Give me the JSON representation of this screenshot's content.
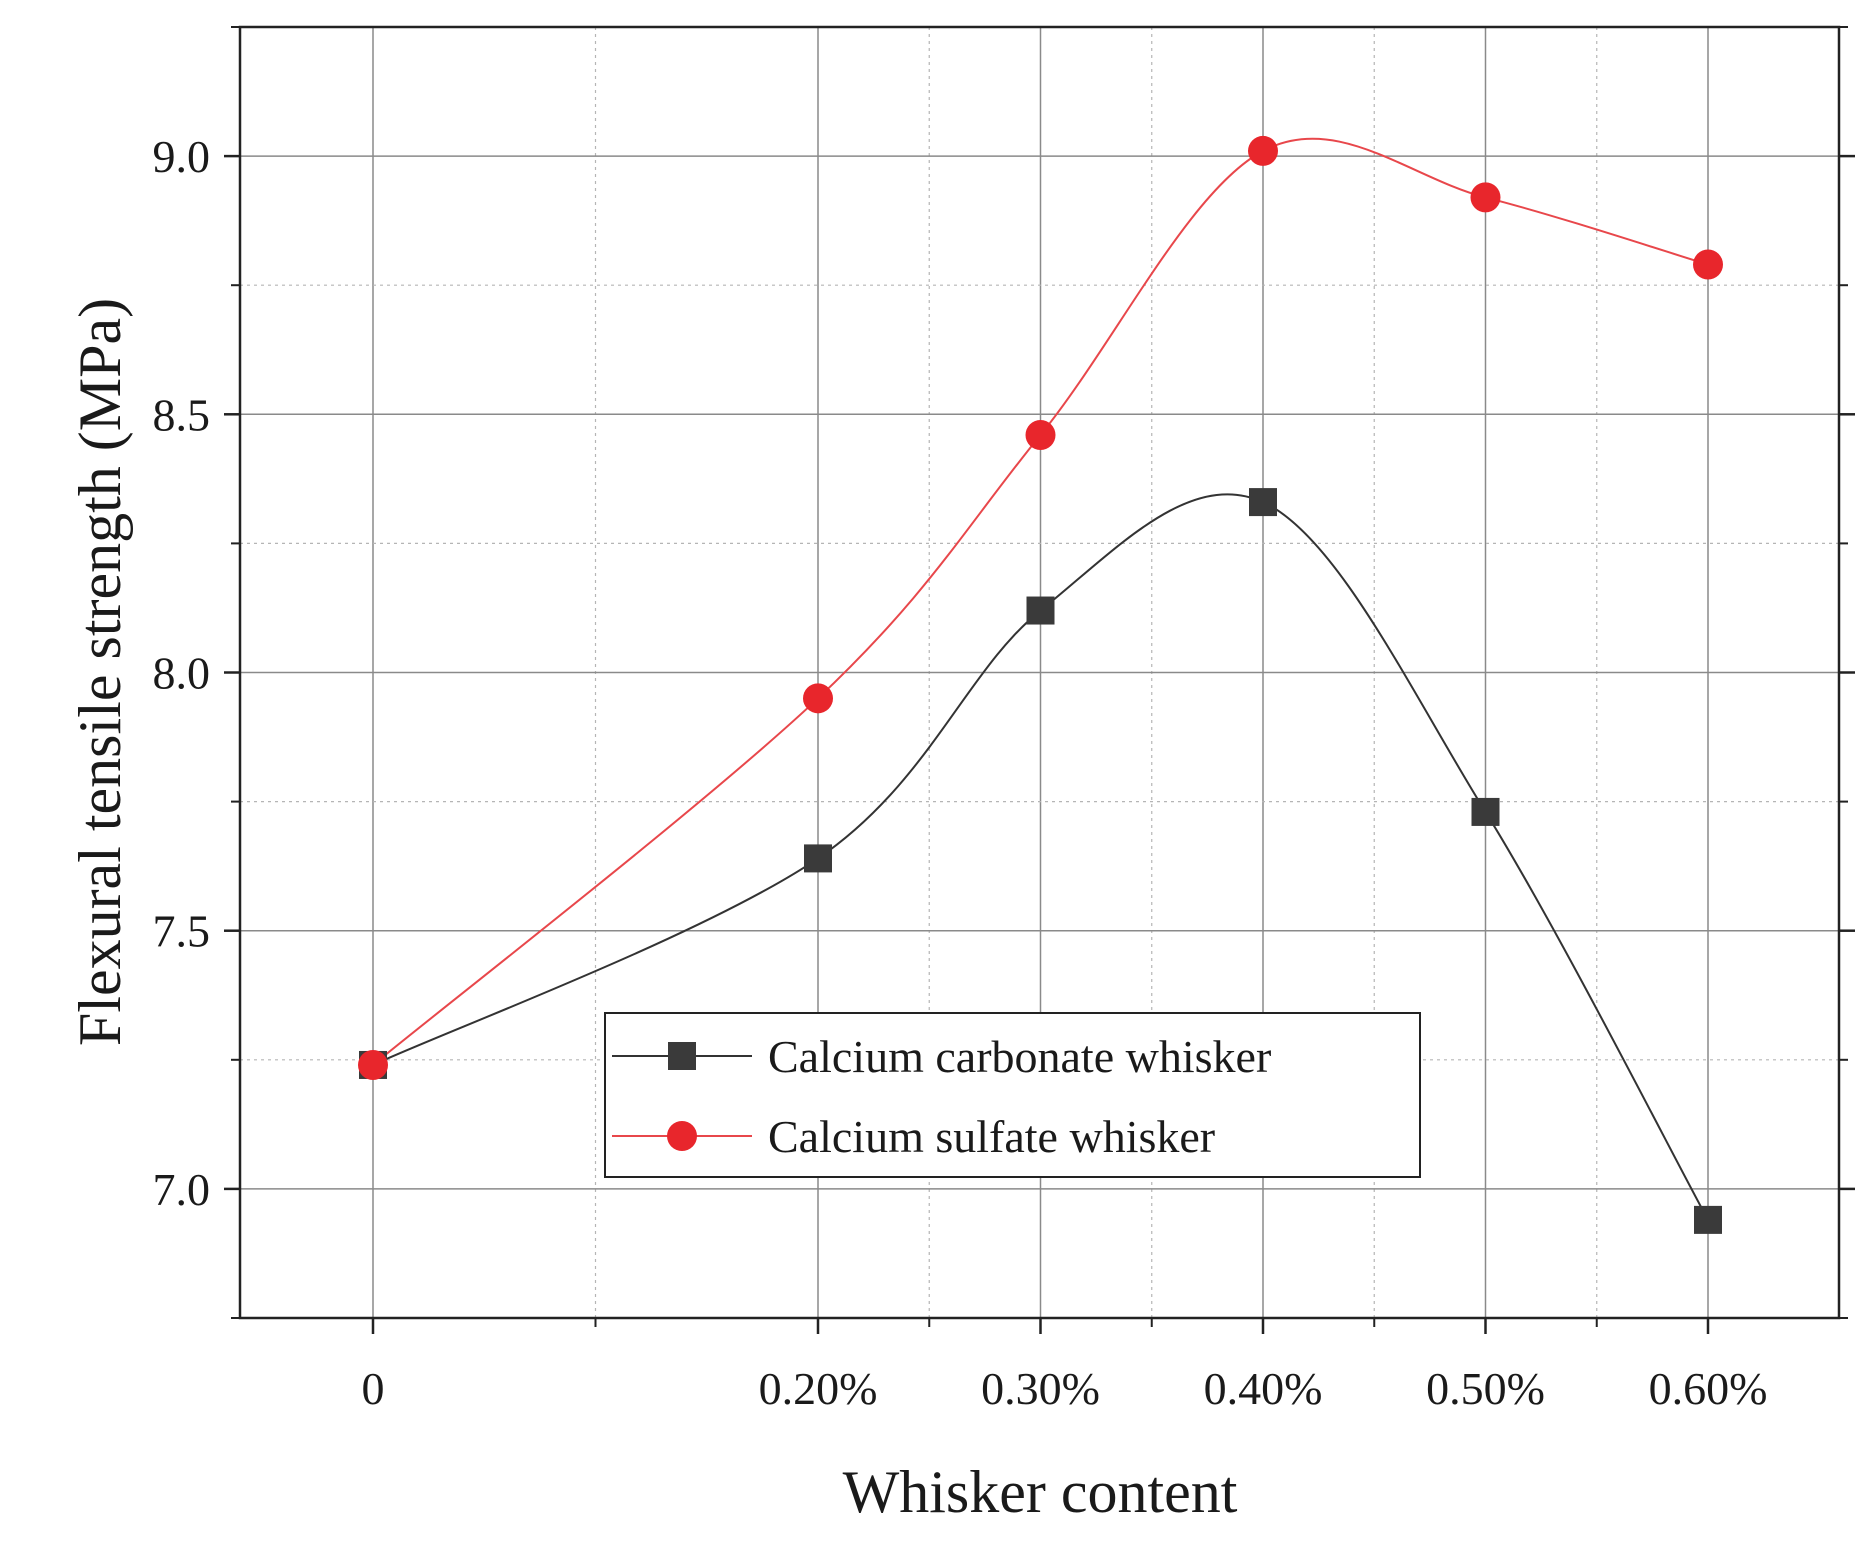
{
  "chart_data": {
    "type": "line",
    "title": "",
    "xlabel": "Whisker content",
    "ylabel": "Flexural tensile strength (MPa)",
    "x": [
      0,
      0.2,
      0.3,
      0.4,
      0.5,
      0.6
    ],
    "x_tick_labels": [
      "0",
      "0.20%",
      "0.30%",
      "0.40%",
      "0.50%",
      "0.60%"
    ],
    "y_ticks": [
      7.0,
      7.5,
      8.0,
      8.5,
      9.0
    ],
    "y_tick_labels": [
      "7.0",
      "7.5",
      "8.0",
      "8.5",
      "9.0"
    ],
    "ylim": [
      6.75,
      9.25
    ],
    "grid": true,
    "legend_position": "lower-center",
    "series": [
      {
        "name": "Calcium carbonate whisker",
        "values": [
          7.24,
          7.64,
          8.12,
          8.33,
          7.73,
          6.94
        ],
        "color": "#333333",
        "marker": "square",
        "marker_color": "#3a3a3a"
      },
      {
        "name": "Calcium sulfate whisker",
        "values": [
          7.24,
          7.95,
          8.46,
          9.01,
          8.92,
          8.79
        ],
        "color": "#e8474b",
        "marker": "circle",
        "marker_color": "#e8262c"
      }
    ]
  }
}
